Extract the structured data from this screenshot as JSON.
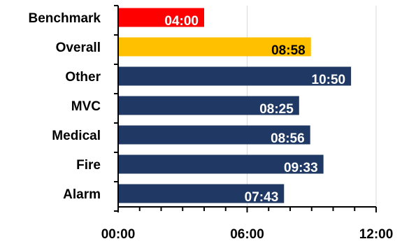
{
  "chart_data": {
    "type": "bar",
    "orientation": "horizontal",
    "categories": [
      "Benchmark",
      "Overall",
      "Other",
      "MVC",
      "Medical",
      "Fire",
      "Alarm"
    ],
    "values_seconds": [
      240,
      538,
      650,
      505,
      536,
      573,
      463
    ],
    "value_labels": [
      "04:00",
      "08:58",
      "10:50",
      "08:25",
      "08:56",
      "09:33",
      "07:43"
    ],
    "xlim_seconds": [
      0,
      720
    ],
    "x_ticks_seconds": [
      0,
      360,
      720
    ],
    "x_tick_labels": [
      "00:00",
      "06:00",
      "12:00"
    ],
    "grid": "vertical",
    "title": "",
    "xlabel": "",
    "ylabel": "",
    "colors": {
      "benchmark": "#ff0000",
      "overall": "#ffc000",
      "default": "#1f3864",
      "grid": "#d9d9d9",
      "axis": "#000000"
    },
    "label_colors": {
      "benchmark": "#ffffff",
      "overall": "#000000",
      "default": "#ffffff"
    }
  }
}
